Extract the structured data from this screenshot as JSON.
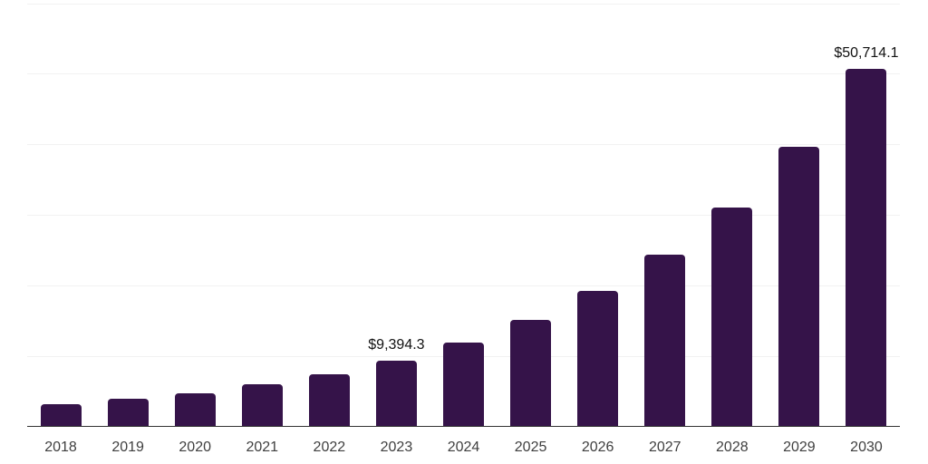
{
  "chart": {
    "background_color": "#ffffff",
    "bar_color": "#351349",
    "grid_color": "#f2f2f2",
    "axis_color": "#333333",
    "tick_label_color": "#3f3f3f",
    "value_label_color": "#111111"
  },
  "chart_data": {
    "type": "bar",
    "title": "",
    "xlabel": "",
    "ylabel": "",
    "categories": [
      "2018",
      "2019",
      "2020",
      "2021",
      "2022",
      "2023",
      "2024",
      "2025",
      "2026",
      "2027",
      "2028",
      "2029",
      "2030"
    ],
    "values": [
      3250,
      4000,
      4800,
      6050,
      7400,
      9394.3,
      11950,
      15200,
      19300,
      24450,
      31100,
      39700,
      50714.1
    ],
    "value_labels": [
      {
        "category": "2023",
        "text": "$9,394.3"
      },
      {
        "category": "2030",
        "text": "$50,714.1"
      }
    ],
    "ylim": [
      0,
      60000
    ],
    "grid_step": 10000,
    "grid": "horizontal-only",
    "legend": "none",
    "y_axis_tick_labels": "none"
  }
}
